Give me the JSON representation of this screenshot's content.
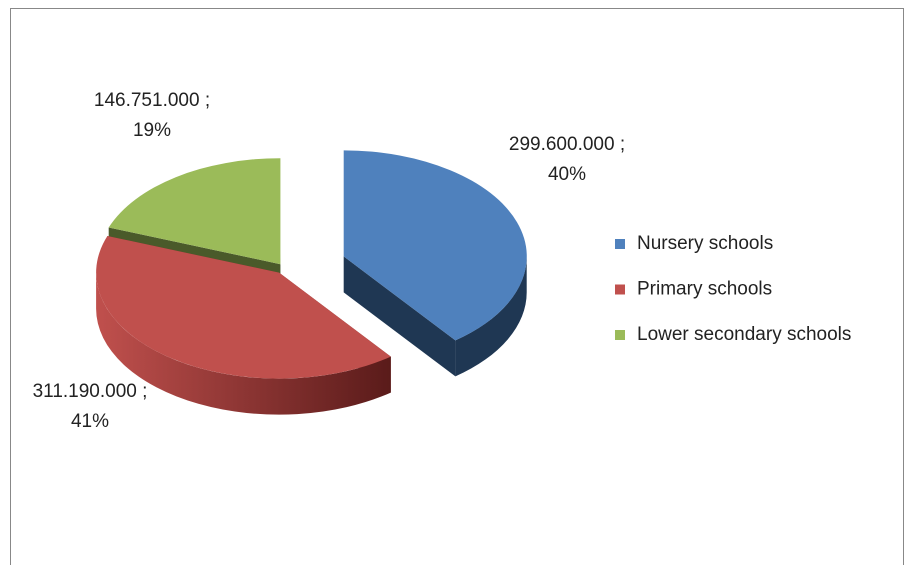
{
  "chart_data": {
    "type": "pie3d",
    "categories": [
      "Nursery schools",
      "Primary schools",
      "Lower secondary schools"
    ],
    "values": [
      299600000,
      311190000,
      146751000
    ],
    "value_labels": [
      "299.600.000 ;",
      "311.190.000 ;",
      "146.751.000 ;"
    ],
    "percent_labels": [
      "40%",
      "41%",
      "19%"
    ],
    "colors": [
      "#4f81bd",
      "#c0504d",
      "#9bbb59"
    ],
    "side_colors": [
      "#1f3753",
      "#7b2b29",
      "#4a5a2a"
    ],
    "legend": "right"
  }
}
